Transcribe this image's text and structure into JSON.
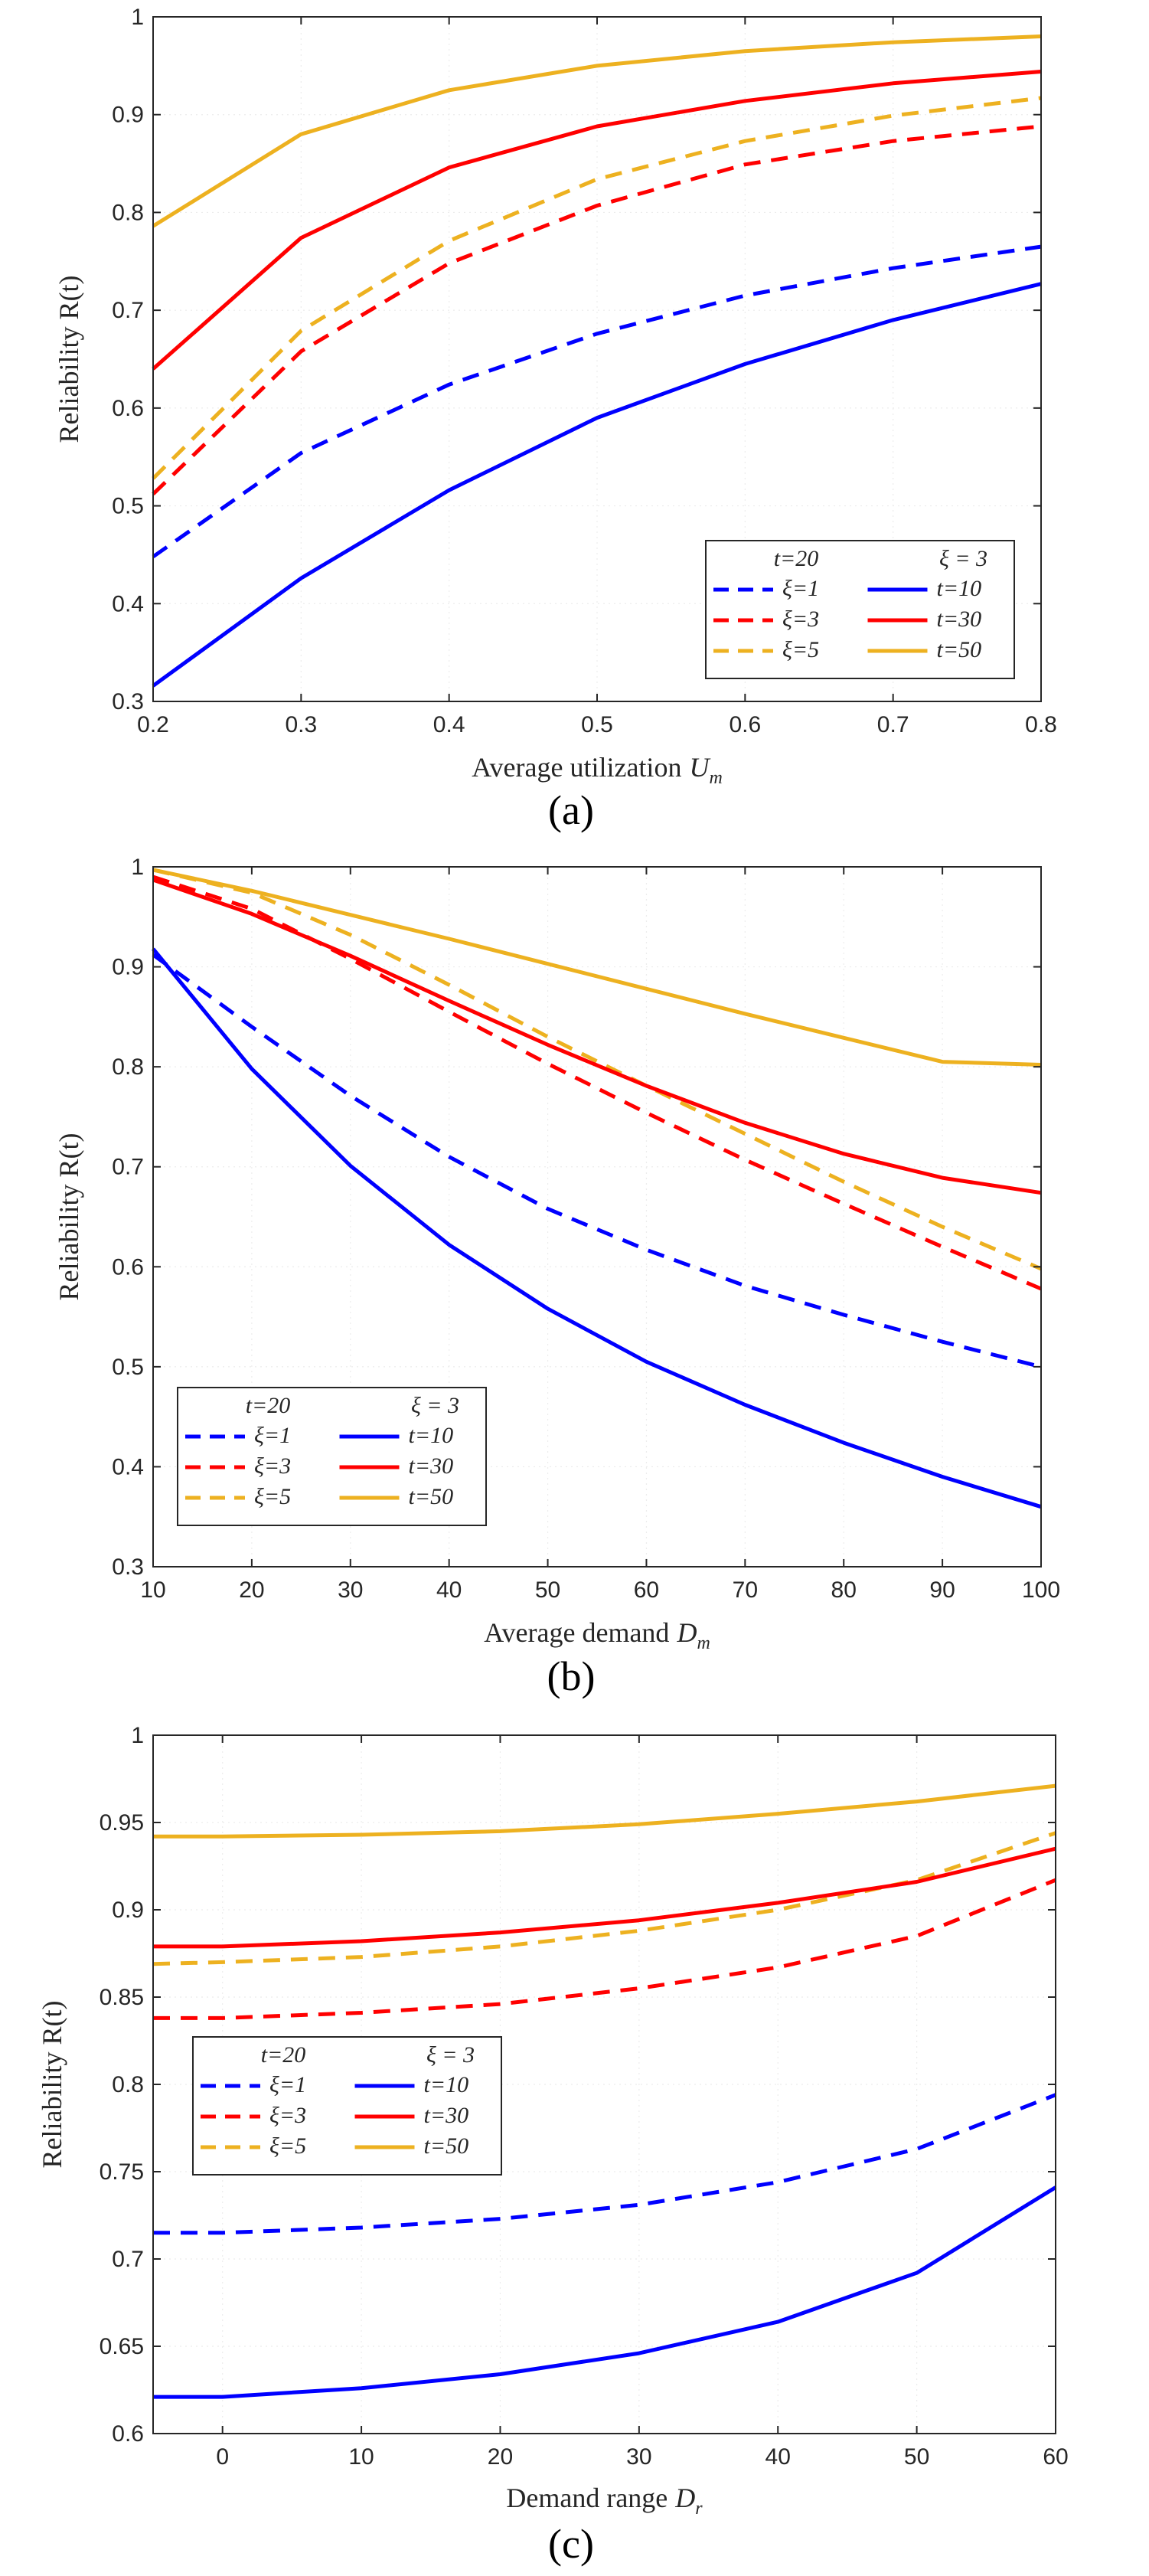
{
  "chart_data": [
    {
      "type": "line",
      "caption": "(a)",
      "xlabel": "Average utilization",
      "xlabel_var": "U",
      "xlabel_sub": "m",
      "ylabel": "Reliability R(t)",
      "xlim": [
        0.2,
        0.8
      ],
      "ylim": [
        0.3,
        1
      ],
      "xticks": [
        "0.2",
        "0.3",
        "0.4",
        "0.5",
        "0.6",
        "0.7",
        "0.8"
      ],
      "yticks": [
        "0.3",
        "0.4",
        "0.5",
        "0.6",
        "0.7",
        "0.8",
        "0.9",
        "1"
      ],
      "grid": true,
      "legend_position": "bottom-right",
      "legend_headers": [
        "t=20",
        "ξ = 3"
      ],
      "x": [
        0.2,
        0.3,
        0.4,
        0.5,
        0.6,
        0.7,
        0.8
      ],
      "series": [
        {
          "name": "ξ=1",
          "style": "dashed",
          "color": "#0000ff",
          "values": [
            0.448,
            0.554,
            0.624,
            0.676,
            0.715,
            0.743,
            0.765
          ]
        },
        {
          "name": "ξ=3",
          "style": "dashed",
          "color": "#ff0000",
          "values": [
            0.512,
            0.658,
            0.748,
            0.807,
            0.849,
            0.873,
            0.888
          ]
        },
        {
          "name": "ξ=5",
          "style": "dashed",
          "color": "#edb120",
          "values": [
            0.528,
            0.679,
            0.771,
            0.834,
            0.873,
            0.899,
            0.917
          ]
        },
        {
          "name": "t=10",
          "style": "solid",
          "color": "#0000ff",
          "values": [
            0.316,
            0.426,
            0.516,
            0.59,
            0.645,
            0.69,
            0.727
          ]
        },
        {
          "name": "t=30",
          "style": "solid",
          "color": "#ff0000",
          "values": [
            0.64,
            0.774,
            0.846,
            0.888,
            0.914,
            0.932,
            0.944
          ]
        },
        {
          "name": "t=50",
          "style": "solid",
          "color": "#edb120",
          "values": [
            0.786,
            0.88,
            0.925,
            0.95,
            0.965,
            0.974,
            0.98
          ]
        }
      ]
    },
    {
      "type": "line",
      "caption": "(b)",
      "xlabel": "Average demand",
      "xlabel_var": "D",
      "xlabel_sub": "m",
      "ylabel": "Reliability R(t)",
      "xlim": [
        10,
        100
      ],
      "ylim": [
        0.3,
        1
      ],
      "xticks": [
        "10",
        "20",
        "30",
        "40",
        "50",
        "60",
        "70",
        "80",
        "90",
        "100"
      ],
      "yticks": [
        "0.3",
        "0.4",
        "0.5",
        "0.6",
        "0.7",
        "0.8",
        "0.9",
        "1"
      ],
      "grid": true,
      "legend_position": "bottom-left",
      "legend_headers": [
        "t=20",
        "ξ = 3"
      ],
      "x": [
        10,
        20,
        30,
        40,
        50,
        60,
        70,
        80,
        90,
        100
      ],
      "series": [
        {
          "name": "ξ=1",
          "style": "dashed",
          "color": "#0000ff",
          "values": [
            0.912,
            0.84,
            0.771,
            0.71,
            0.658,
            0.617,
            0.581,
            0.552,
            0.525,
            0.5
          ]
        },
        {
          "name": "ξ=3",
          "style": "dashed",
          "color": "#ff0000",
          "values": [
            0.99,
            0.958,
            0.908,
            0.855,
            0.803,
            0.754,
            0.707,
            0.663,
            0.62,
            0.578
          ]
        },
        {
          "name": "ξ=5",
          "style": "dashed",
          "color": "#edb120",
          "values": [
            0.997,
            0.974,
            0.932,
            0.882,
            0.83,
            0.781,
            0.733,
            0.685,
            0.64,
            0.598
          ]
        },
        {
          "name": "t=10",
          "style": "solid",
          "color": "#0000ff",
          "values": [
            0.918,
            0.798,
            0.701,
            0.622,
            0.558,
            0.505,
            0.462,
            0.424,
            0.39,
            0.36
          ]
        },
        {
          "name": "t=30",
          "style": "solid",
          "color": "#ff0000",
          "values": [
            0.987,
            0.953,
            0.911,
            0.866,
            0.822,
            0.781,
            0.744,
            0.713,
            0.689,
            0.674
          ]
        },
        {
          "name": "t=50",
          "style": "solid",
          "color": "#edb120",
          "values": [
            0.997,
            0.976,
            0.952,
            0.928,
            0.903,
            0.878,
            0.853,
            0.829,
            0.805,
            0.802
          ]
        }
      ]
    },
    {
      "type": "line",
      "caption": "(c)",
      "xlabel": "Demand range",
      "xlabel_var": "D",
      "xlabel_sub": "r",
      "ylabel": "Reliability R(t)",
      "xlim": [
        -5,
        60
      ],
      "ylim": [
        0.6,
        1
      ],
      "xticks": [
        "0",
        "10",
        "20",
        "30",
        "40",
        "50",
        "60"
      ],
      "yticks": [
        "0.6",
        "0.65",
        "0.7",
        "0.75",
        "0.8",
        "0.85",
        "0.9",
        "0.95",
        "1"
      ],
      "grid": true,
      "legend_position": "middle-left",
      "legend_headers": [
        "t=20",
        "ξ = 3"
      ],
      "x": [
        -5,
        0,
        10,
        20,
        30,
        40,
        50,
        60
      ],
      "series": [
        {
          "name": "ξ=1",
          "style": "dashed",
          "color": "#0000ff",
          "values": [
            0.715,
            0.715,
            0.718,
            0.723,
            0.731,
            0.744,
            0.763,
            0.794
          ]
        },
        {
          "name": "ξ=3",
          "style": "dashed",
          "color": "#ff0000",
          "values": [
            0.838,
            0.838,
            0.841,
            0.846,
            0.855,
            0.867,
            0.885,
            0.917
          ]
        },
        {
          "name": "ξ=5",
          "style": "dashed",
          "color": "#edb120",
          "values": [
            0.869,
            0.87,
            0.873,
            0.879,
            0.888,
            0.9,
            0.917,
            0.944
          ]
        },
        {
          "name": "t=10",
          "style": "solid",
          "color": "#0000ff",
          "values": [
            0.621,
            0.621,
            0.626,
            0.634,
            0.646,
            0.664,
            0.692,
            0.741
          ]
        },
        {
          "name": "t=30",
          "style": "solid",
          "color": "#ff0000",
          "values": [
            0.879,
            0.879,
            0.882,
            0.887,
            0.894,
            0.904,
            0.916,
            0.935
          ]
        },
        {
          "name": "t=50",
          "style": "solid",
          "color": "#edb120",
          "values": [
            0.942,
            0.942,
            0.943,
            0.945,
            0.949,
            0.955,
            0.962,
            0.971
          ]
        }
      ]
    }
  ]
}
